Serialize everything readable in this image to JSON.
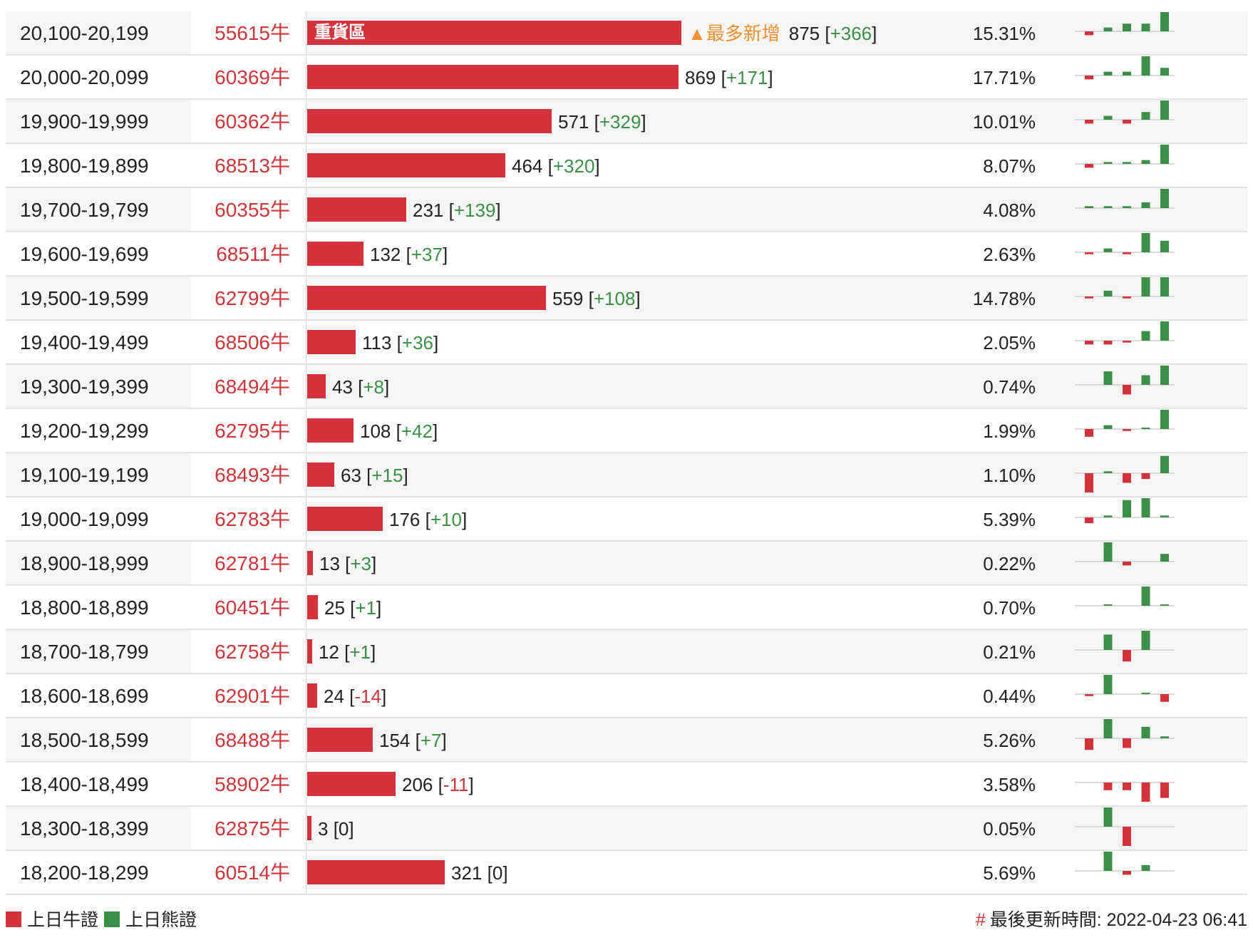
{
  "colors": {
    "bull": "#d3323a",
    "bear": "#3c8f46",
    "accent": "#ee8f32",
    "baseline": "#cfcfcf"
  },
  "heavy_zone_label": "重貨區",
  "new_most_badge": "▲最多新增",
  "rows": [
    {
      "range": "20,100-20,199",
      "code": "55615牛",
      "count": 875,
      "count_text": "875",
      "delta": "+366",
      "pct": "15.31%",
      "heavy": true,
      "new_most": true,
      "spark": [
        -1,
        1,
        2,
        2,
        5
      ]
    },
    {
      "range": "20,000-20,099",
      "code": "60369牛",
      "count": 869,
      "count_text": "869",
      "delta": "+171",
      "pct": "17.71%",
      "spark": [
        -1,
        1,
        1,
        5,
        2
      ]
    },
    {
      "range": "19,900-19,999",
      "code": "60362牛",
      "count": 571,
      "count_text": "571",
      "delta": "+329",
      "pct": "10.01%",
      "spark": [
        -1,
        1,
        -1,
        2,
        5
      ]
    },
    {
      "range": "19,800-19,899",
      "code": "68513牛",
      "count": 464,
      "count_text": "464",
      "delta": "+320",
      "pct": "8.07%",
      "spark": [
        -1,
        0.5,
        0.5,
        1,
        5
      ]
    },
    {
      "range": "19,700-19,799",
      "code": "60355牛",
      "count": 231,
      "count_text": "231",
      "delta": "+139",
      "pct": "4.08%",
      "spark": [
        0.5,
        0.5,
        0.5,
        1.5,
        5
      ]
    },
    {
      "range": "19,600-19,699",
      "code": "68511牛",
      "count": 132,
      "count_text": "132",
      "delta": "+37",
      "pct": "2.63%",
      "spark": [
        -0.5,
        1,
        -0.5,
        5,
        3
      ]
    },
    {
      "range": "19,500-19,599",
      "code": "62799牛",
      "count": 559,
      "count_text": "559",
      "delta": "+108",
      "pct": "14.78%",
      "spark": [
        -0.5,
        1.5,
        -0.5,
        5,
        5
      ]
    },
    {
      "range": "19,400-19,499",
      "code": "68506牛",
      "count": 113,
      "count_text": "113",
      "delta": "+36",
      "pct": "2.05%",
      "spark": [
        -1,
        -1,
        -0.5,
        2.5,
        5
      ]
    },
    {
      "range": "19,300-19,399",
      "code": "68494牛",
      "count": 43,
      "count_text": "43",
      "delta": "+8",
      "pct": "0.74%",
      "spark": [
        0,
        3.5,
        -2.5,
        2.5,
        5
      ]
    },
    {
      "range": "19,200-19,299",
      "code": "62795牛",
      "count": 108,
      "count_text": "108",
      "delta": "+42",
      "pct": "1.99%",
      "spark": [
        -2,
        1,
        -0.5,
        0.3,
        5
      ]
    },
    {
      "range": "19,100-19,199",
      "code": "68493牛",
      "count": 63,
      "count_text": "63",
      "delta": "+15",
      "pct": "1.10%",
      "spark": [
        -5,
        0.5,
        -2.5,
        -1.5,
        4.5
      ]
    },
    {
      "range": "19,000-19,099",
      "code": "62783牛",
      "count": 176,
      "count_text": "176",
      "delta": "+10",
      "pct": "5.39%",
      "spark": [
        -1.5,
        0.5,
        4.5,
        5,
        0.5
      ]
    },
    {
      "range": "18,900-18,999",
      "code": "62781牛",
      "count": 13,
      "count_text": "13",
      "delta": "+3",
      "pct": "0.22%",
      "spark": [
        0,
        5,
        -1,
        0,
        2
      ]
    },
    {
      "range": "18,800-18,899",
      "code": "60451牛",
      "count": 25,
      "count_text": "25",
      "delta": "+1",
      "pct": "0.70%",
      "spark": [
        0,
        0.3,
        0,
        5,
        0.3
      ]
    },
    {
      "range": "18,700-18,799",
      "code": "62758牛",
      "count": 12,
      "count_text": "12",
      "delta": "+1",
      "pct": "0.21%",
      "spark": [
        0,
        4,
        -3,
        5,
        0
      ]
    },
    {
      "range": "18,600-18,699",
      "code": "62901牛",
      "count": 24,
      "count_text": "24",
      "delta": "-14",
      "pct": "0.44%",
      "spark": [
        -0.5,
        5,
        0,
        0.3,
        -2
      ]
    },
    {
      "range": "18,500-18,599",
      "code": "68488牛",
      "count": 154,
      "count_text": "154",
      "delta": "+7",
      "pct": "5.26%",
      "spark": [
        -3,
        5,
        -2.5,
        3,
        0.5
      ]
    },
    {
      "range": "18,400-18,499",
      "code": "58902牛",
      "count": 206,
      "count_text": "206",
      "delta": "-11",
      "pct": "3.58%",
      "spark": [
        0,
        -2,
        -2,
        -5,
        -4
      ]
    },
    {
      "range": "18,300-18,399",
      "code": "62875牛",
      "count": 3,
      "count_text": "3",
      "delta": "0",
      "pct": "0.05%",
      "spark": [
        0,
        5,
        -5,
        0,
        0
      ]
    },
    {
      "range": "18,200-18,299",
      "code": "60514牛",
      "count": 321,
      "count_text": "321",
      "delta": "0",
      "pct": "5.69%",
      "spark": [
        0,
        5,
        -1,
        1.5,
        0
      ]
    }
  ],
  "legend": {
    "bull_label": "上日牛證",
    "bear_label": "上日熊證"
  },
  "updated": {
    "hash": "#",
    "text": "最後更新時間: 2022-04-23 06:41"
  }
}
